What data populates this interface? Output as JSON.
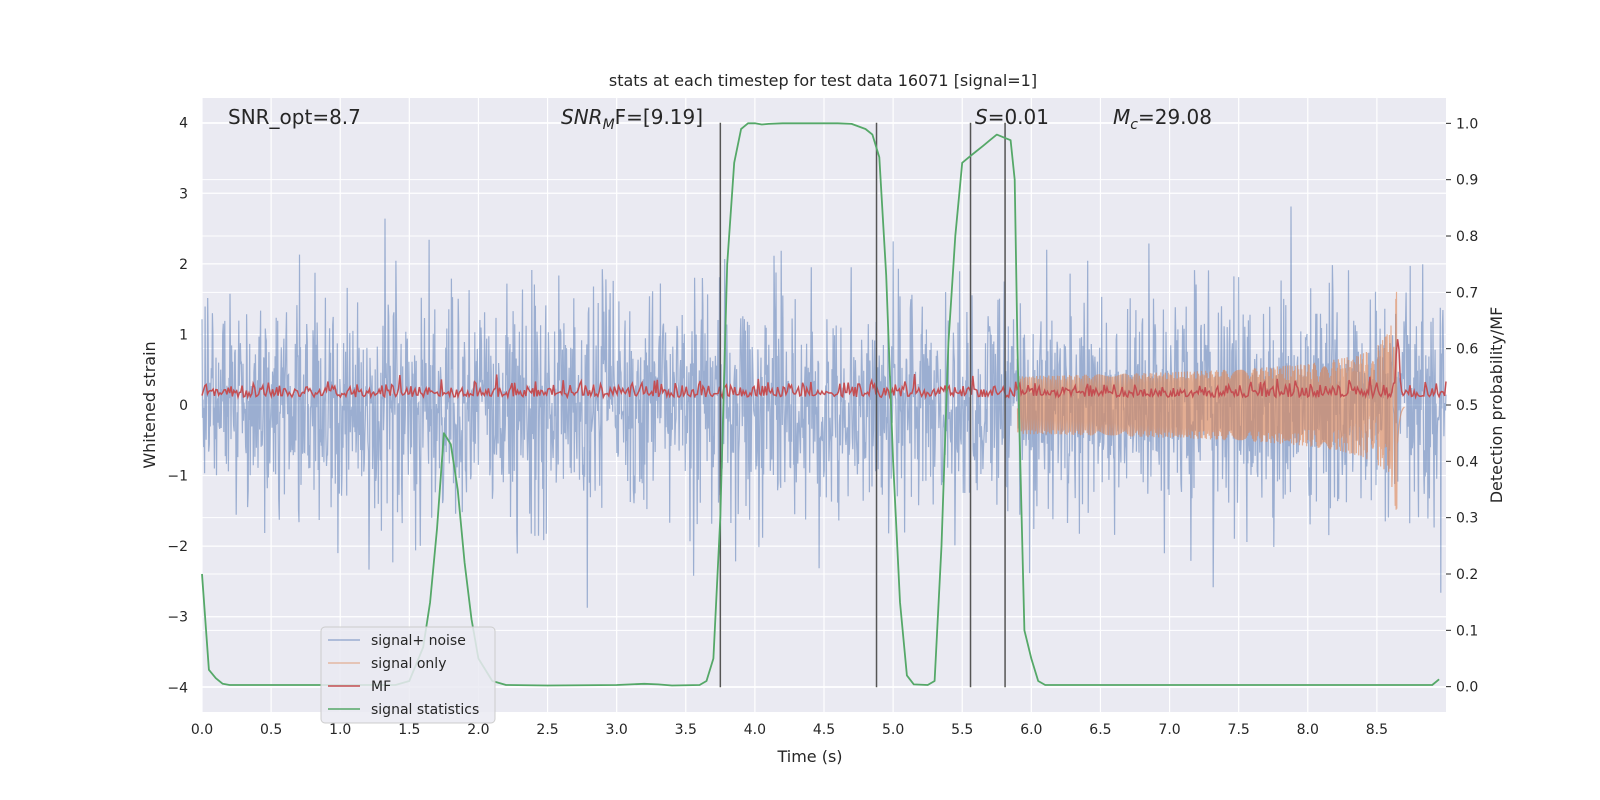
{
  "chart_data": {
    "type": "line",
    "title": "stats at each timestep for test data 16071 [signal=1]",
    "xlabel": "Time (s)",
    "ylabel": "Whitened strain",
    "y2label": "Detection probability/MF",
    "xlim": [
      0.0,
      9.0
    ],
    "ylim": [
      -4.35,
      4.35
    ],
    "y2lim": [
      -0.045,
      1.045
    ],
    "xticks": [
      "0.0",
      "0.5",
      "1.0",
      "1.5",
      "2.0",
      "2.5",
      "3.0",
      "3.5",
      "4.0",
      "4.5",
      "5.0",
      "5.5",
      "6.0",
      "6.5",
      "7.0",
      "7.5",
      "8.0",
      "8.5"
    ],
    "yticks": [
      "4",
      "3",
      "2",
      "1",
      "0",
      "−1",
      "−2",
      "−3",
      "−4"
    ],
    "y2ticks": [
      "1.0",
      "0.9",
      "0.8",
      "0.7",
      "0.6",
      "0.5",
      "0.4",
      "0.3",
      "0.2",
      "0.1",
      "0.0"
    ],
    "grid": true,
    "legend_position": "lower-left",
    "annotations": {
      "snr_opt": "SNR_opt=8.7",
      "snr_mf_base": "SNR",
      "snr_mf_sub": "M",
      "snr_mf_rest": "F=[9.19]",
      "s_base": "S",
      "s_rest": "=0.01",
      "mc_base": "M",
      "mc_sub": "c",
      "mc_rest": "=29.08"
    },
    "vertical_lines_x": [
      3.75,
      4.88,
      5.56,
      5.81
    ],
    "series": [
      {
        "name": "signal+ noise",
        "color": "#4c72b0",
        "axis": "left",
        "kind": "noise",
        "envelope_std": 0.8,
        "peak_max": 3.6,
        "peak_min": -3.95
      },
      {
        "name": "signal only",
        "color": "#dd8452",
        "axis": "left",
        "kind": "chirp",
        "merger_x": 8.65,
        "peak": 2.1,
        "start_x": 5.9
      },
      {
        "name": "MF",
        "color": "#c44e52",
        "axis": "right",
        "kind": "mf",
        "baseline": 0.52,
        "peak_x": 8.65,
        "peak_value": 0.62
      },
      {
        "name": "signal statistics",
        "color": "#55a868",
        "axis": "right",
        "x": [
          0.0,
          0.05,
          0.1,
          0.15,
          0.2,
          1.0,
          1.4,
          1.5,
          1.6,
          1.65,
          1.7,
          1.75,
          1.8,
          1.85,
          1.9,
          1.95,
          2.0,
          2.1,
          2.2,
          2.5,
          3.0,
          3.2,
          3.3,
          3.4,
          3.6,
          3.65,
          3.7,
          3.75,
          3.8,
          3.85,
          3.9,
          3.95,
          4.0,
          4.05,
          4.1,
          4.2,
          4.4,
          4.6,
          4.7,
          4.8,
          4.85,
          4.9,
          4.95,
          5.0,
          5.05,
          5.1,
          5.15,
          5.25,
          5.3,
          5.35,
          5.4,
          5.45,
          5.5,
          5.55,
          5.6,
          5.65,
          5.7,
          5.75,
          5.8,
          5.85,
          5.88,
          5.9,
          5.95,
          6.0,
          6.05,
          6.1,
          7.0,
          8.0,
          8.9,
          8.95
        ],
        "y": [
          0.2,
          0.03,
          0.015,
          0.005,
          0.003,
          0.003,
          0.003,
          0.01,
          0.07,
          0.15,
          0.28,
          0.45,
          0.43,
          0.35,
          0.22,
          0.12,
          0.05,
          0.01,
          0.003,
          0.002,
          0.003,
          0.005,
          0.004,
          0.002,
          0.003,
          0.01,
          0.05,
          0.3,
          0.75,
          0.93,
          0.99,
          1.0,
          1.0,
          0.998,
          0.999,
          1.0,
          1.0,
          1.0,
          0.999,
          0.99,
          0.98,
          0.94,
          0.73,
          0.4,
          0.15,
          0.02,
          0.004,
          0.003,
          0.01,
          0.25,
          0.61,
          0.8,
          0.93,
          0.94,
          0.95,
          0.96,
          0.97,
          0.98,
          0.975,
          0.97,
          0.9,
          0.6,
          0.1,
          0.05,
          0.01,
          0.003,
          0.003,
          0.003,
          0.003,
          0.013
        ]
      }
    ]
  }
}
